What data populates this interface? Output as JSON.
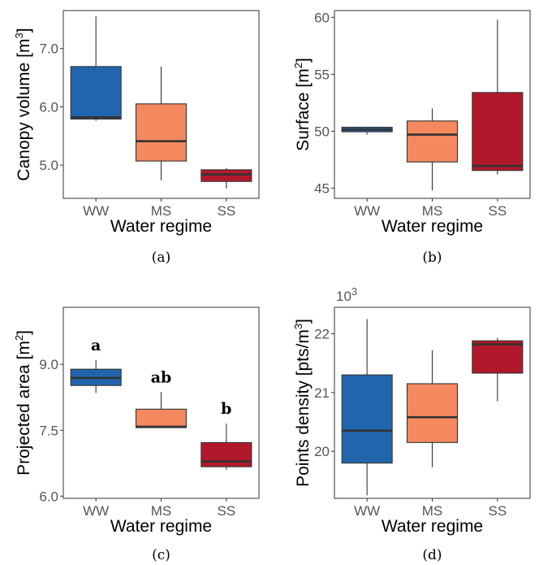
{
  "colors": {
    "WW": "#2166ac",
    "MS": "#f4895f",
    "SS": "#b2182b",
    "median": "#333333",
    "frame": "#333333",
    "whisker": "#333333"
  },
  "chart_data": [
    {
      "type": "box",
      "panel_label": "(a)",
      "categories": [
        "WW",
        "MS",
        "SS"
      ],
      "xlabel": "Water regime",
      "ylabel": {
        "text": "Canopy volume [m",
        "sup": "3",
        "close": "]"
      },
      "ylim": [
        4.43,
        7.65
      ],
      "yticks": [
        5.0,
        6.0,
        7.0
      ],
      "ytick_labels": [
        "5.0",
        "6.0",
        "7.0"
      ],
      "boxes": [
        {
          "category": "WW",
          "min": 5.76,
          "q1": 5.79,
          "median": 5.82,
          "q3": 6.69,
          "max": 7.55
        },
        {
          "category": "MS",
          "min": 4.74,
          "q1": 5.07,
          "median": 5.41,
          "q3": 6.05,
          "max": 6.69
        },
        {
          "category": "SS",
          "min": 4.6,
          "q1": 4.72,
          "median": 4.84,
          "q3": 4.92,
          "max": 4.95
        }
      ]
    },
    {
      "type": "box",
      "panel_label": "(b)",
      "categories": [
        "WW",
        "MS",
        "SS"
      ],
      "xlabel": "Water regime",
      "ylabel": {
        "text": "Surface [m",
        "sup": "2",
        "close": "]"
      },
      "ylim": [
        44.1,
        60.6
      ],
      "yticks": [
        45,
        50,
        55,
        60
      ],
      "ytick_labels": [
        "45",
        "50",
        "55",
        "60"
      ],
      "boxes": [
        {
          "category": "WW",
          "min": 49.7,
          "q1": 49.95,
          "median": 50.15,
          "q3": 50.35,
          "max": 50.4
        },
        {
          "category": "MS",
          "min": 44.8,
          "q1": 47.3,
          "median": 49.7,
          "q3": 50.9,
          "max": 52.0
        },
        {
          "category": "SS",
          "min": 46.2,
          "q1": 46.55,
          "median": 46.95,
          "q3": 53.4,
          "max": 59.8
        }
      ]
    },
    {
      "type": "box",
      "panel_label": "(c)",
      "categories": [
        "WW",
        "MS",
        "SS"
      ],
      "xlabel": "Water regime",
      "ylabel": {
        "text": "Projected area [m",
        "sup": "2",
        "close": "]"
      },
      "ylim": [
        5.95,
        10.3
      ],
      "yticks": [
        6.0,
        7.5,
        9.0
      ],
      "ytick_labels": [
        "6.0",
        "7.5",
        "9.0"
      ],
      "significance": [
        "a",
        "ab",
        "b"
      ],
      "boxes": [
        {
          "category": "WW",
          "min": 8.35,
          "q1": 8.52,
          "median": 8.69,
          "q3": 8.89,
          "max": 9.1
        },
        {
          "category": "MS",
          "min": 7.55,
          "q1": 7.56,
          "median": 7.58,
          "q3": 7.98,
          "max": 8.37
        },
        {
          "category": "SS",
          "min": 6.6,
          "q1": 6.67,
          "median": 6.79,
          "q3": 7.22,
          "max": 7.65
        }
      ]
    },
    {
      "type": "box",
      "panel_label": "(d)",
      "categories": [
        "WW",
        "MS",
        "SS"
      ],
      "xlabel": "Water regime",
      "ylabel": {
        "text": "Points density  [pts/m",
        "sup": "3",
        "close": "]"
      },
      "yscale_label": {
        "base": "10",
        "exp": "3"
      },
      "ylim": [
        19.2,
        22.45
      ],
      "yticks": [
        20,
        21,
        22
      ],
      "ytick_labels": [
        "20",
        "21",
        "22"
      ],
      "boxes": [
        {
          "category": "WW",
          "min": 19.25,
          "q1": 19.8,
          "median": 20.35,
          "q3": 21.3,
          "max": 22.25
        },
        {
          "category": "MS",
          "min": 19.73,
          "q1": 20.15,
          "median": 20.58,
          "q3": 21.15,
          "max": 21.72
        },
        {
          "category": "SS",
          "min": 20.85,
          "q1": 21.33,
          "median": 21.82,
          "q3": 21.88,
          "max": 21.93
        }
      ]
    }
  ]
}
